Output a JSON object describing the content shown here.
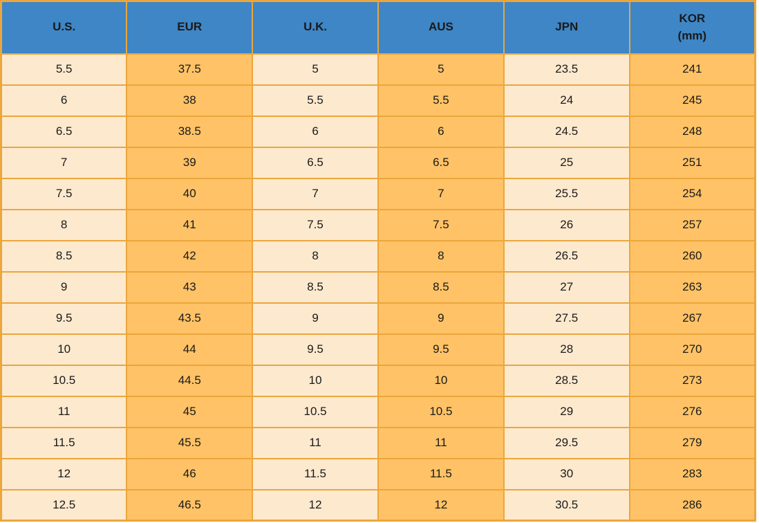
{
  "colors": {
    "header_bg": "#3E86C6",
    "cream_cell": "#FDE9CE",
    "orange_cell": "#FFC266",
    "border": "#EBA63C",
    "text": "#1A1A1A"
  },
  "chart_data": {
    "type": "table",
    "columns": [
      "U.S.",
      "EUR",
      "U.K.",
      "AUS",
      "JPN",
      "KOR\n(mm)"
    ],
    "rows": [
      [
        "5.5",
        "37.5",
        "5",
        "5",
        "23.5",
        "241"
      ],
      [
        "6",
        "38",
        "5.5",
        "5.5",
        "24",
        "245"
      ],
      [
        "6.5",
        "38.5",
        "6",
        "6",
        "24.5",
        "248"
      ],
      [
        "7",
        "39",
        "6.5",
        "6.5",
        "25",
        "251"
      ],
      [
        "7.5",
        "40",
        "7",
        "7",
        "25.5",
        "254"
      ],
      [
        "8",
        "41",
        "7.5",
        "7.5",
        "26",
        "257"
      ],
      [
        "8.5",
        "42",
        "8",
        "8",
        "26.5",
        "260"
      ],
      [
        "9",
        "43",
        "8.5",
        "8.5",
        "27",
        "263"
      ],
      [
        "9.5",
        "43.5",
        "9",
        "9",
        "27.5",
        "267"
      ],
      [
        "10",
        "44",
        "9.5",
        "9.5",
        "28",
        "270"
      ],
      [
        "10.5",
        "44.5",
        "10",
        "10",
        "28.5",
        "273"
      ],
      [
        "11",
        "45",
        "10.5",
        "10.5",
        "29",
        "276"
      ],
      [
        "11.5",
        "45.5",
        "11",
        "11",
        "29.5",
        "279"
      ],
      [
        "12",
        "46",
        "11.5",
        "11.5",
        "30",
        "283"
      ],
      [
        "12.5",
        "46.5",
        "12",
        "12",
        "30.5",
        "286"
      ]
    ]
  }
}
